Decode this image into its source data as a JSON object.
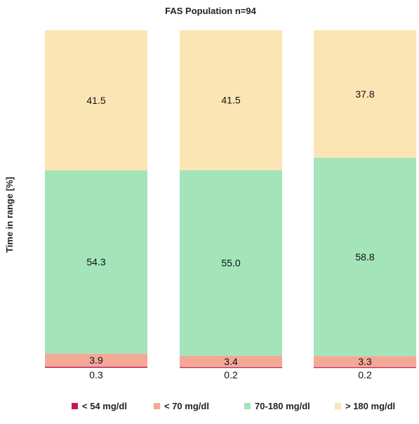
{
  "chart_data": {
    "type": "bar",
    "stacked": true,
    "title": "FAS Population n=94",
    "ylabel": "Time in range [%]",
    "xlabel": "",
    "categories": [
      "",
      "",
      ""
    ],
    "ylim": [
      0,
      100
    ],
    "grid": false,
    "legend_position": "bottom",
    "series": [
      {
        "name": "< 54 mg/dl",
        "color": "#c2185b",
        "values": [
          0.3,
          0.2,
          0.2
        ],
        "labels": [
          "0.3",
          "0.2",
          "0.2"
        ],
        "label_position": "below"
      },
      {
        "name": "< 70 mg/dl",
        "color": "#f4a896",
        "values": [
          3.9,
          3.4,
          3.3
        ],
        "labels": [
          "3.9",
          "3.4",
          "3.3"
        ],
        "label_position": "inside"
      },
      {
        "name": "70-180 mg/dl",
        "color": "#a3e4b9",
        "values": [
          54.3,
          55.0,
          58.8
        ],
        "labels": [
          "54.3",
          "55.0",
          "58.8"
        ],
        "label_position": "inside"
      },
      {
        "name": "> 180 mg/dl",
        "color": "#fce5b4",
        "values": [
          41.5,
          41.5,
          37.8
        ],
        "labels": [
          "41.5",
          "41.5",
          "37.8"
        ],
        "label_position": "inside"
      }
    ]
  }
}
